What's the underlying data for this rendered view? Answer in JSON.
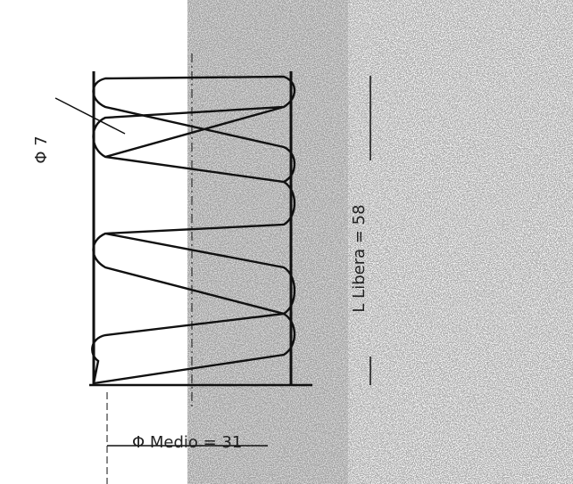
{
  "labels": {
    "wire_diameter": "Φ 7",
    "free_length": "L Libera = 58",
    "mean_diameter": "Φ Medio = 31"
  }
}
